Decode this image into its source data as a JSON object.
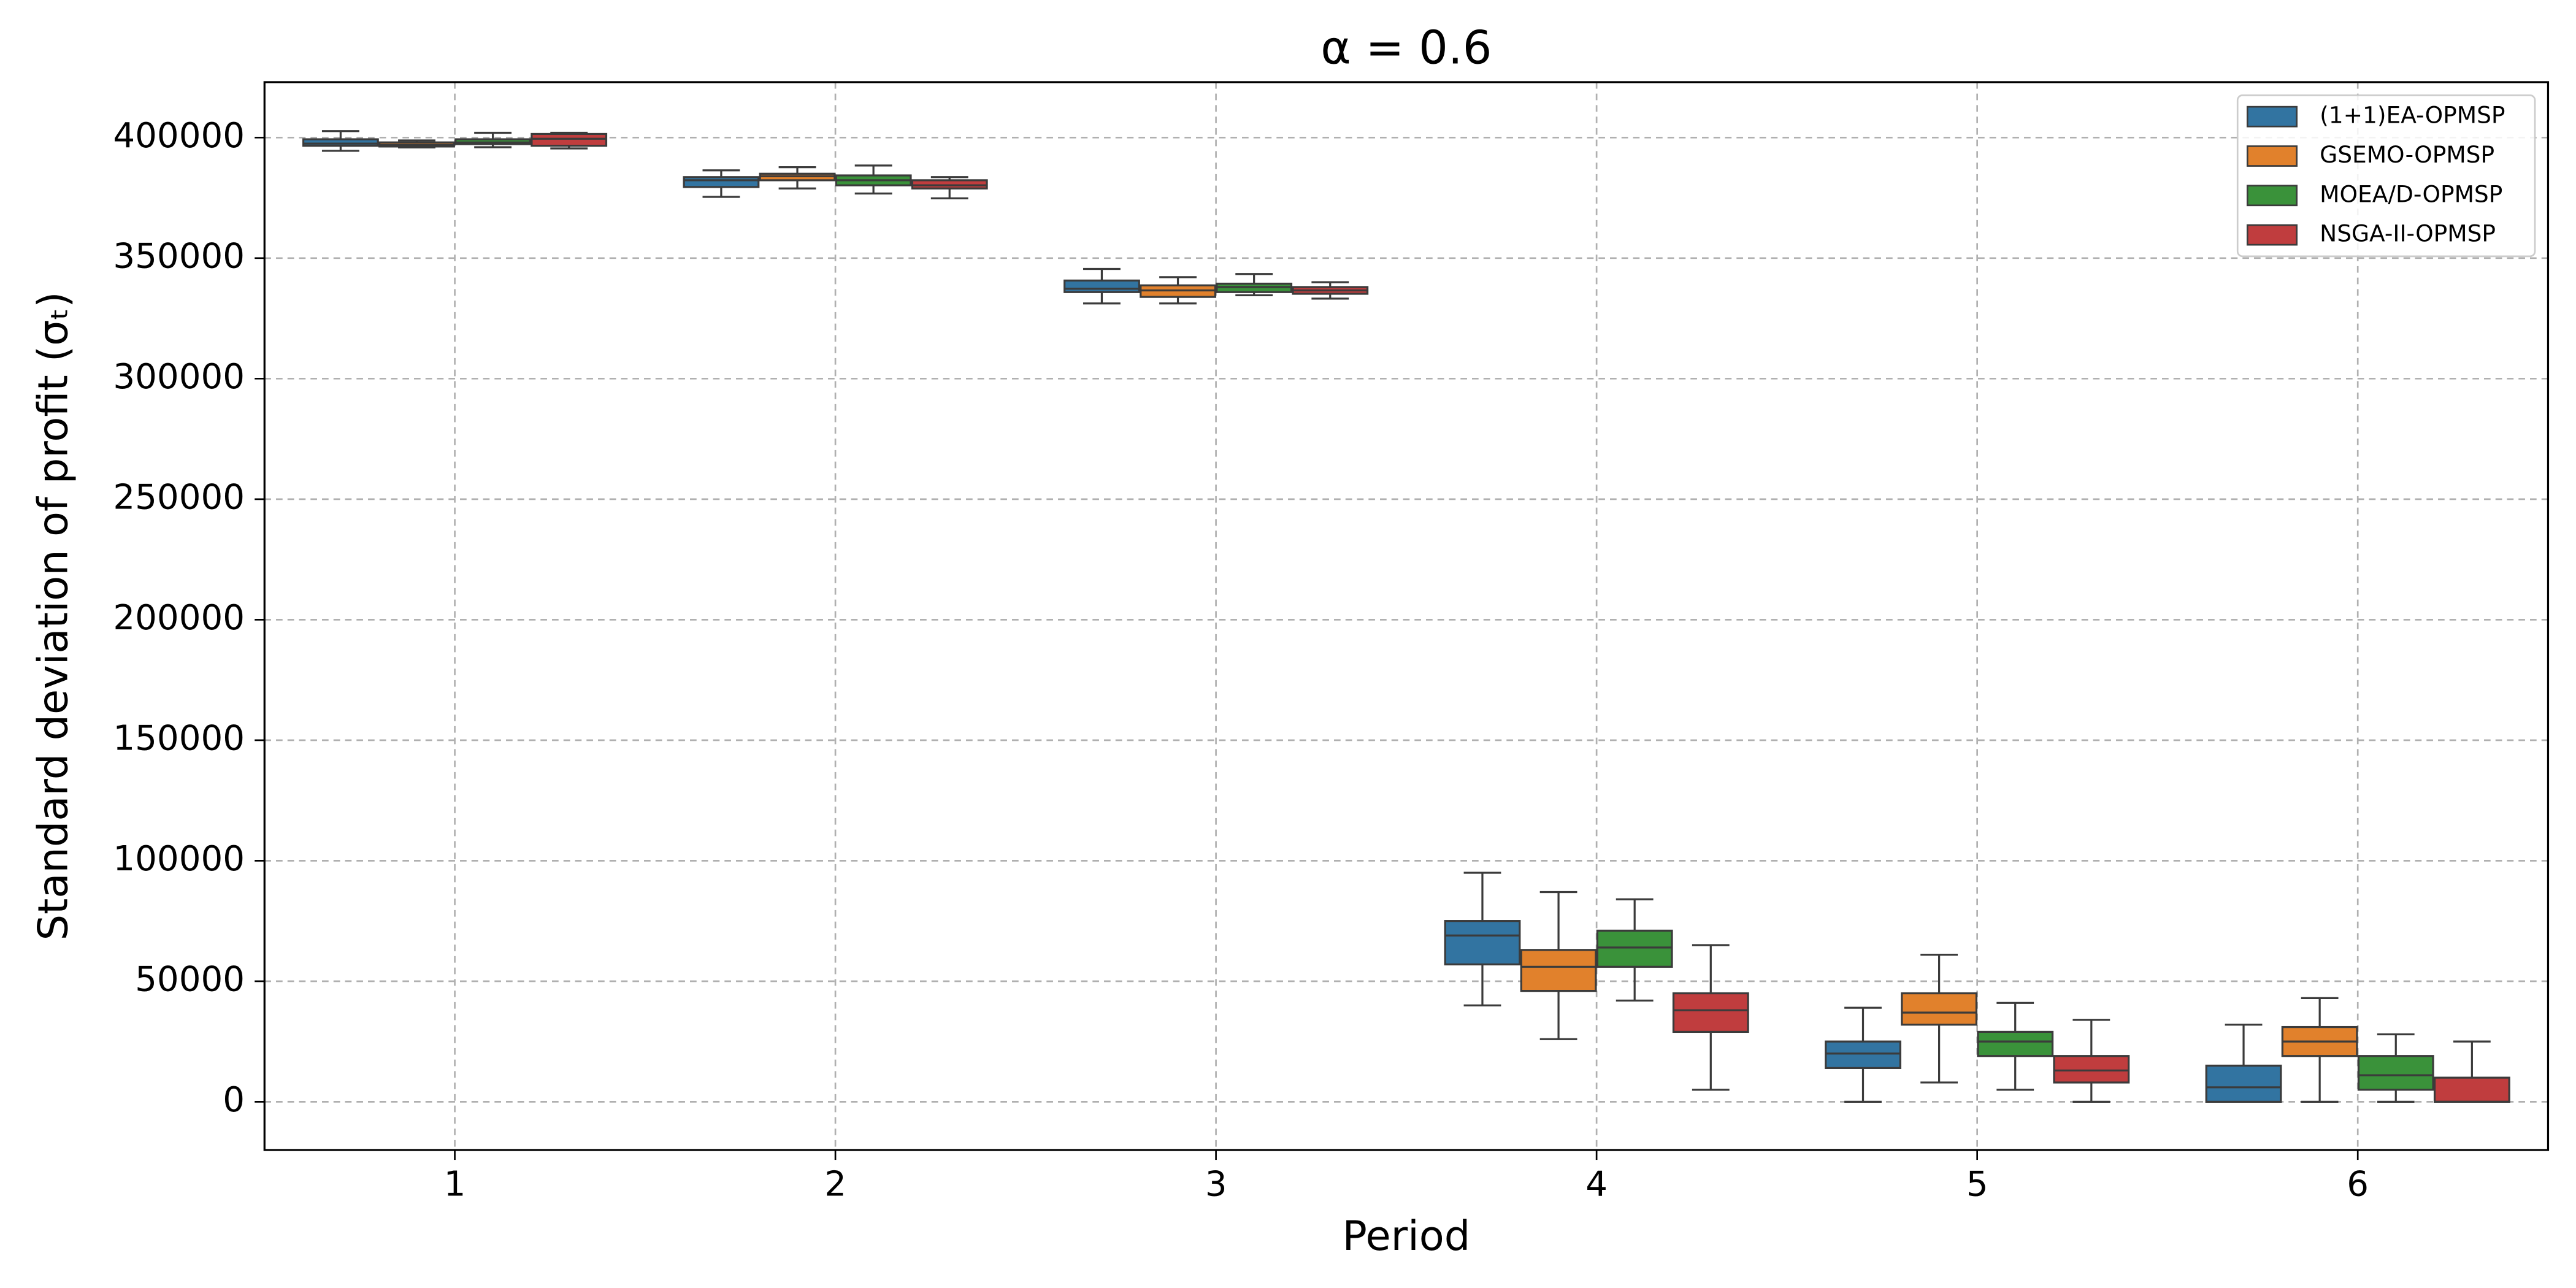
{
  "chart_data": {
    "type": "box",
    "title": "α = 0.6",
    "xlabel": "Period",
    "ylabel": "Standard deviation of profit (σₜ)",
    "categories": [
      "1",
      "2",
      "3",
      "4",
      "5",
      "6"
    ],
    "ylim": [
      -20000,
      423000
    ],
    "yticks": [
      0,
      50000,
      100000,
      150000,
      200000,
      250000,
      300000,
      350000,
      400000
    ],
    "grid": true,
    "legend": "upper right",
    "series": [
      {
        "name": "(1+1)EA-OPMSP",
        "color": "#3274a1",
        "values": [
          {
            "min": 394500,
            "q1": 396600,
            "median": 397500,
            "q3": 399300,
            "max": 402700
          },
          {
            "min": 375400,
            "q1": 379500,
            "median": 382300,
            "q3": 383600,
            "max": 386400
          },
          {
            "min": 331200,
            "q1": 335900,
            "median": 337300,
            "q3": 340700,
            "max": 345500
          },
          {
            "min": 40000,
            "q1": 57000,
            "median": 69000,
            "q3": 75000,
            "max": 95000
          },
          {
            "min": 0,
            "q1": 14000,
            "median": 20000,
            "q3": 25000,
            "max": 39000
          },
          {
            "min": 0,
            "q1": 0,
            "median": 6000,
            "q3": 15000,
            "max": 32000
          }
        ]
      },
      {
        "name": "GSEMO-OPMSP",
        "color": "#e1812c",
        "values": [
          {
            "min": 395900,
            "q1": 396300,
            "median": 397000,
            "q3": 398000,
            "max": 398800
          },
          {
            "min": 378900,
            "q1": 382300,
            "median": 384000,
            "q3": 385000,
            "max": 387700
          },
          {
            "min": 331200,
            "q1": 333900,
            "median": 336600,
            "q3": 338700,
            "max": 342100
          },
          {
            "min": 26000,
            "q1": 46000,
            "median": 56000,
            "q3": 63000,
            "max": 87000
          },
          {
            "min": 8000,
            "q1": 32000,
            "median": 37000,
            "q3": 45000,
            "max": 61000
          },
          {
            "min": 0,
            "q1": 19000,
            "median": 25000,
            "q3": 31000,
            "max": 43000
          }
        ]
      },
      {
        "name": "MOEA/D-OPMSP",
        "color": "#3a923a",
        "values": [
          {
            "min": 396000,
            "q1": 397300,
            "median": 398000,
            "q3": 399300,
            "max": 402000
          },
          {
            "min": 376800,
            "q1": 380200,
            "median": 382300,
            "q3": 384300,
            "max": 388400
          },
          {
            "min": 334600,
            "q1": 335900,
            "median": 338000,
            "q3": 339400,
            "max": 343400
          },
          {
            "min": 42000,
            "q1": 56000,
            "median": 64000,
            "q3": 71000,
            "max": 84000
          },
          {
            "min": 5000,
            "q1": 19000,
            "median": 25000,
            "q3": 29000,
            "max": 41000
          },
          {
            "min": 0,
            "q1": 5000,
            "median": 11000,
            "q3": 19000,
            "max": 28000
          }
        ]
      },
      {
        "name": "NSGA-II-OPMSP",
        "color": "#c03d3e",
        "values": [
          {
            "min": 395500,
            "q1": 396600,
            "median": 399500,
            "q3": 401500,
            "max": 402000
          },
          {
            "min": 374800,
            "q1": 378900,
            "median": 380200,
            "q3": 382300,
            "max": 383600
          },
          {
            "min": 333200,
            "q1": 335200,
            "median": 336600,
            "q3": 338000,
            "max": 340000
          },
          {
            "min": 5000,
            "q1": 29000,
            "median": 38000,
            "q3": 45000,
            "max": 65000
          },
          {
            "min": 0,
            "q1": 8000,
            "median": 13000,
            "q3": 19000,
            "max": 34000
          },
          {
            "min": 0,
            "q1": 0,
            "median": 0,
            "q3": 10000,
            "max": 25000
          }
        ]
      }
    ]
  }
}
